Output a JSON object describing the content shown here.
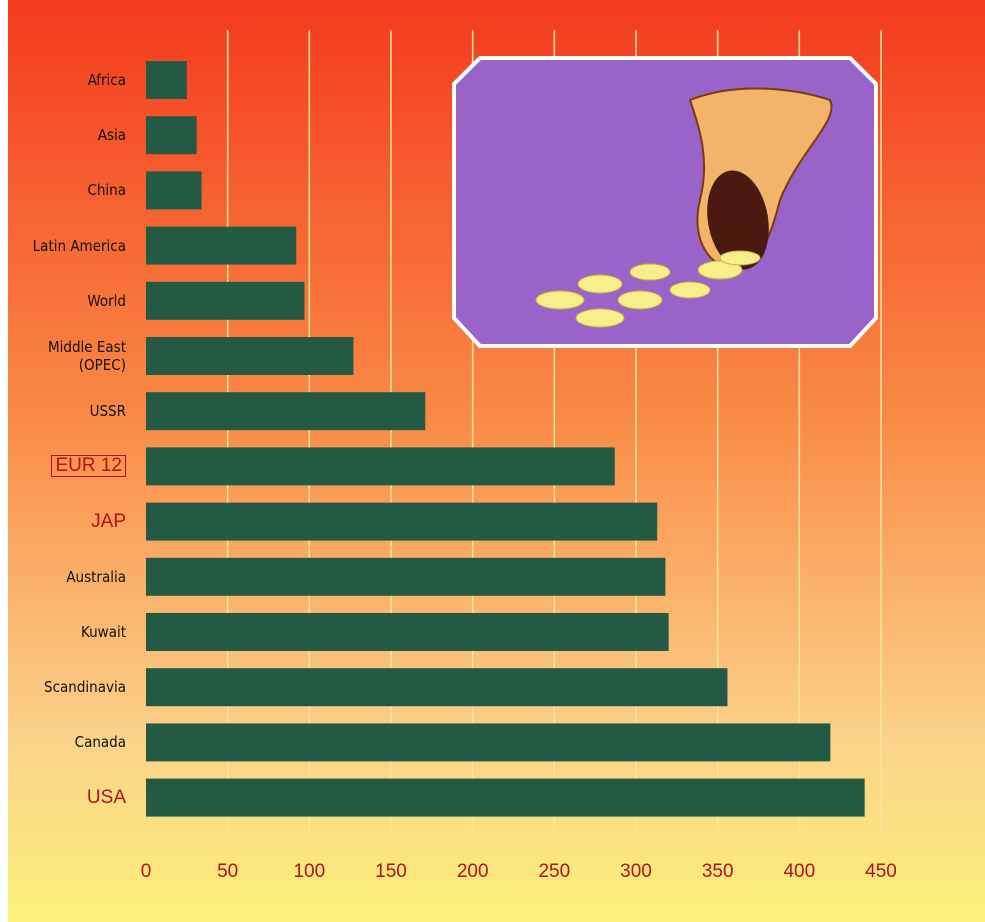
{
  "chart_data": {
    "type": "bar",
    "orientation": "horizontal",
    "categories": [
      "Africa",
      "Asia",
      "China",
      "Latin America",
      "World",
      "Middle East (OPEC)",
      "USSR",
      "EUR 12",
      "JAP",
      "Australia",
      "Kuwait",
      "Scandinavia",
      "Canada",
      "USA"
    ],
    "values": [
      25,
      31,
      34,
      92,
      97,
      127,
      171,
      287,
      313,
      318,
      320,
      356,
      419,
      440
    ],
    "color": "#245a43",
    "xlim": [
      0,
      450
    ],
    "xticks": [
      0,
      50,
      100,
      150,
      200,
      250,
      300,
      350,
      400,
      450
    ],
    "grid": true
  }
}
